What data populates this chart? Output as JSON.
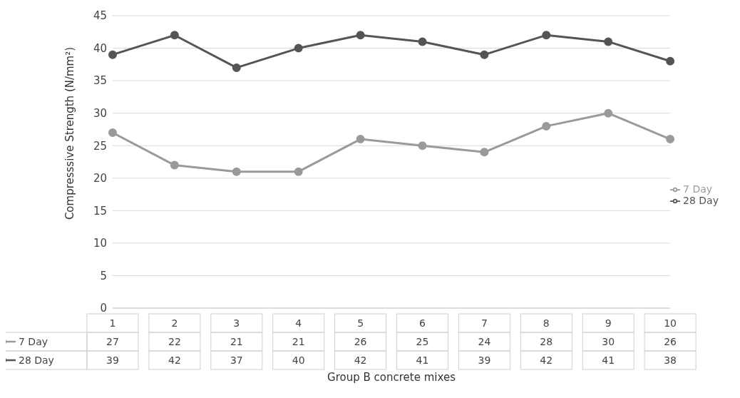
{
  "chart_data": {
    "type": "line",
    "xlabel": "Group B concrete mixes",
    "ylabel": "Compresssive Strength (N/mm²)",
    "categories": [
      "1",
      "2",
      "3",
      "4",
      "5",
      "6",
      "7",
      "8",
      "9",
      "10"
    ],
    "series": [
      {
        "name": "7 Day",
        "color": "#9a9a9a",
        "values": [
          27,
          22,
          21,
          21,
          26,
          25,
          24,
          28,
          30,
          26
        ]
      },
      {
        "name": "28 Day",
        "color": "#555555",
        "values": [
          39,
          42,
          37,
          40,
          42,
          41,
          39,
          42,
          41,
          38
        ]
      }
    ],
    "ylim": [
      0,
      45
    ],
    "yticks": [
      0,
      5,
      10,
      15,
      20,
      25,
      30,
      35,
      40,
      45
    ],
    "grid": "y",
    "legend": "right",
    "marker": "circle",
    "data_labels": true
  }
}
